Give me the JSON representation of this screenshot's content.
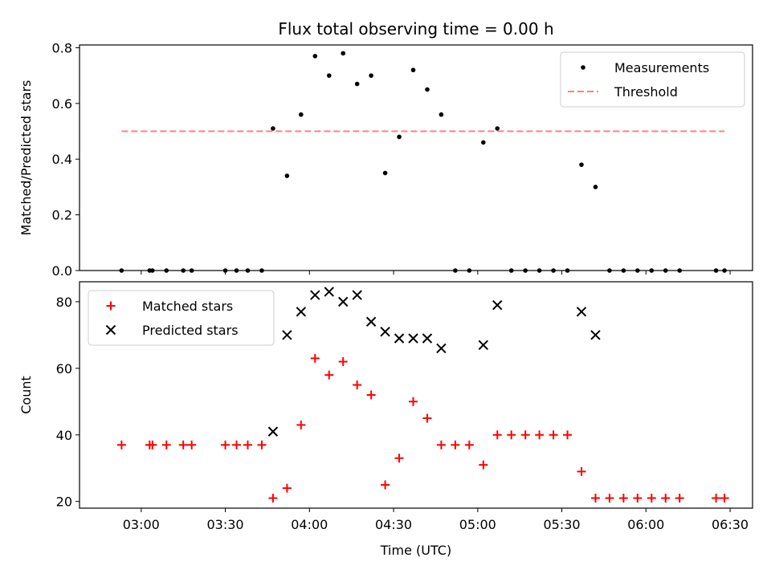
{
  "chart_data": [
    {
      "type": "scatter",
      "title": "Flux total observing time = 0.00 h",
      "xlabel": "",
      "ylabel": "Matched/Predicted stars",
      "xlim": [
        "02:38",
        "06:38"
      ],
      "ylim": [
        0,
        0.81
      ],
      "yticks": [
        "0.0",
        "0.2",
        "0.4",
        "0.6",
        "0.8"
      ],
      "legend_position": "top-right",
      "series": [
        {
          "name": "Measurements",
          "marker": "dot",
          "color": "#000000",
          "x": [
            "02:53",
            "03:03",
            "03:04",
            "03:09",
            "03:15",
            "03:18",
            "03:30",
            "03:34",
            "03:38",
            "03:43",
            "03:47",
            "03:52",
            "03:57",
            "04:02",
            "04:07",
            "04:12",
            "04:17",
            "04:22",
            "04:27",
            "04:32",
            "04:37",
            "04:42",
            "04:47",
            "04:52",
            "04:57",
            "05:02",
            "05:07",
            "05:12",
            "05:17",
            "05:22",
            "05:27",
            "05:32",
            "05:37",
            "05:42",
            "05:47",
            "05:52",
            "05:57",
            "06:02",
            "06:07",
            "06:12",
            "06:25",
            "06:28"
          ],
          "y": [
            0,
            0,
            0,
            0,
            0,
            0,
            0,
            0,
            0,
            0,
            0.51,
            0.34,
            0.56,
            0.77,
            0.7,
            0.78,
            0.67,
            0.7,
            0.35,
            0.48,
            0.72,
            0.65,
            0.56,
            0,
            0,
            0.46,
            0.51,
            0,
            0,
            0,
            0,
            0,
            0.38,
            0.3,
            0,
            0,
            0,
            0,
            0,
            0,
            0,
            0
          ]
        },
        {
          "name": "Threshold",
          "marker": "dashed-line",
          "color": "#ff7f7f",
          "x": [
            "02:53",
            "06:28"
          ],
          "y": [
            0.5,
            0.5
          ]
        }
      ]
    },
    {
      "type": "scatter",
      "title": "",
      "xlabel": "Time (UTC)",
      "ylabel": "Count",
      "xlim": [
        "02:38",
        "06:38"
      ],
      "ylim": [
        18,
        86
      ],
      "yticks": [
        "20",
        "40",
        "60",
        "80"
      ],
      "xticks": [
        "03:00",
        "03:30",
        "04:00",
        "04:30",
        "05:00",
        "05:30",
        "06:00",
        "06:30"
      ],
      "legend_position": "top-left",
      "series": [
        {
          "name": "Matched stars",
          "marker": "plus",
          "color": "#ff0000",
          "x": [
            "02:53",
            "03:03",
            "03:04",
            "03:09",
            "03:15",
            "03:18",
            "03:30",
            "03:34",
            "03:38",
            "03:43",
            "03:47",
            "03:52",
            "03:57",
            "04:02",
            "04:07",
            "04:12",
            "04:17",
            "04:22",
            "04:27",
            "04:32",
            "04:37",
            "04:42",
            "04:47",
            "04:52",
            "04:57",
            "05:02",
            "05:07",
            "05:12",
            "05:17",
            "05:22",
            "05:27",
            "05:32",
            "05:37",
            "05:42",
            "05:47",
            "05:52",
            "05:57",
            "06:02",
            "06:07",
            "06:12",
            "06:25",
            "06:28"
          ],
          "y": [
            37,
            37,
            37,
            37,
            37,
            37,
            37,
            37,
            37,
            37,
            21,
            24,
            43,
            63,
            58,
            62,
            55,
            52,
            25,
            33,
            50,
            45,
            37,
            37,
            37,
            31,
            40,
            40,
            40,
            40,
            40,
            40,
            29,
            21,
            21,
            21,
            21,
            21,
            21,
            21,
            21,
            21
          ]
        },
        {
          "name": "Predicted stars",
          "marker": "x",
          "color": "#000000",
          "x": [
            "03:47",
            "03:52",
            "03:57",
            "04:02",
            "04:07",
            "04:12",
            "04:17",
            "04:22",
            "04:27",
            "04:32",
            "04:37",
            "04:42",
            "04:47",
            "05:02",
            "05:07",
            "05:37",
            "05:42"
          ],
          "y": [
            41,
            70,
            77,
            82,
            83,
            80,
            82,
            74,
            71,
            69,
            69,
            69,
            66,
            67,
            79,
            77,
            70
          ]
        }
      ]
    }
  ]
}
